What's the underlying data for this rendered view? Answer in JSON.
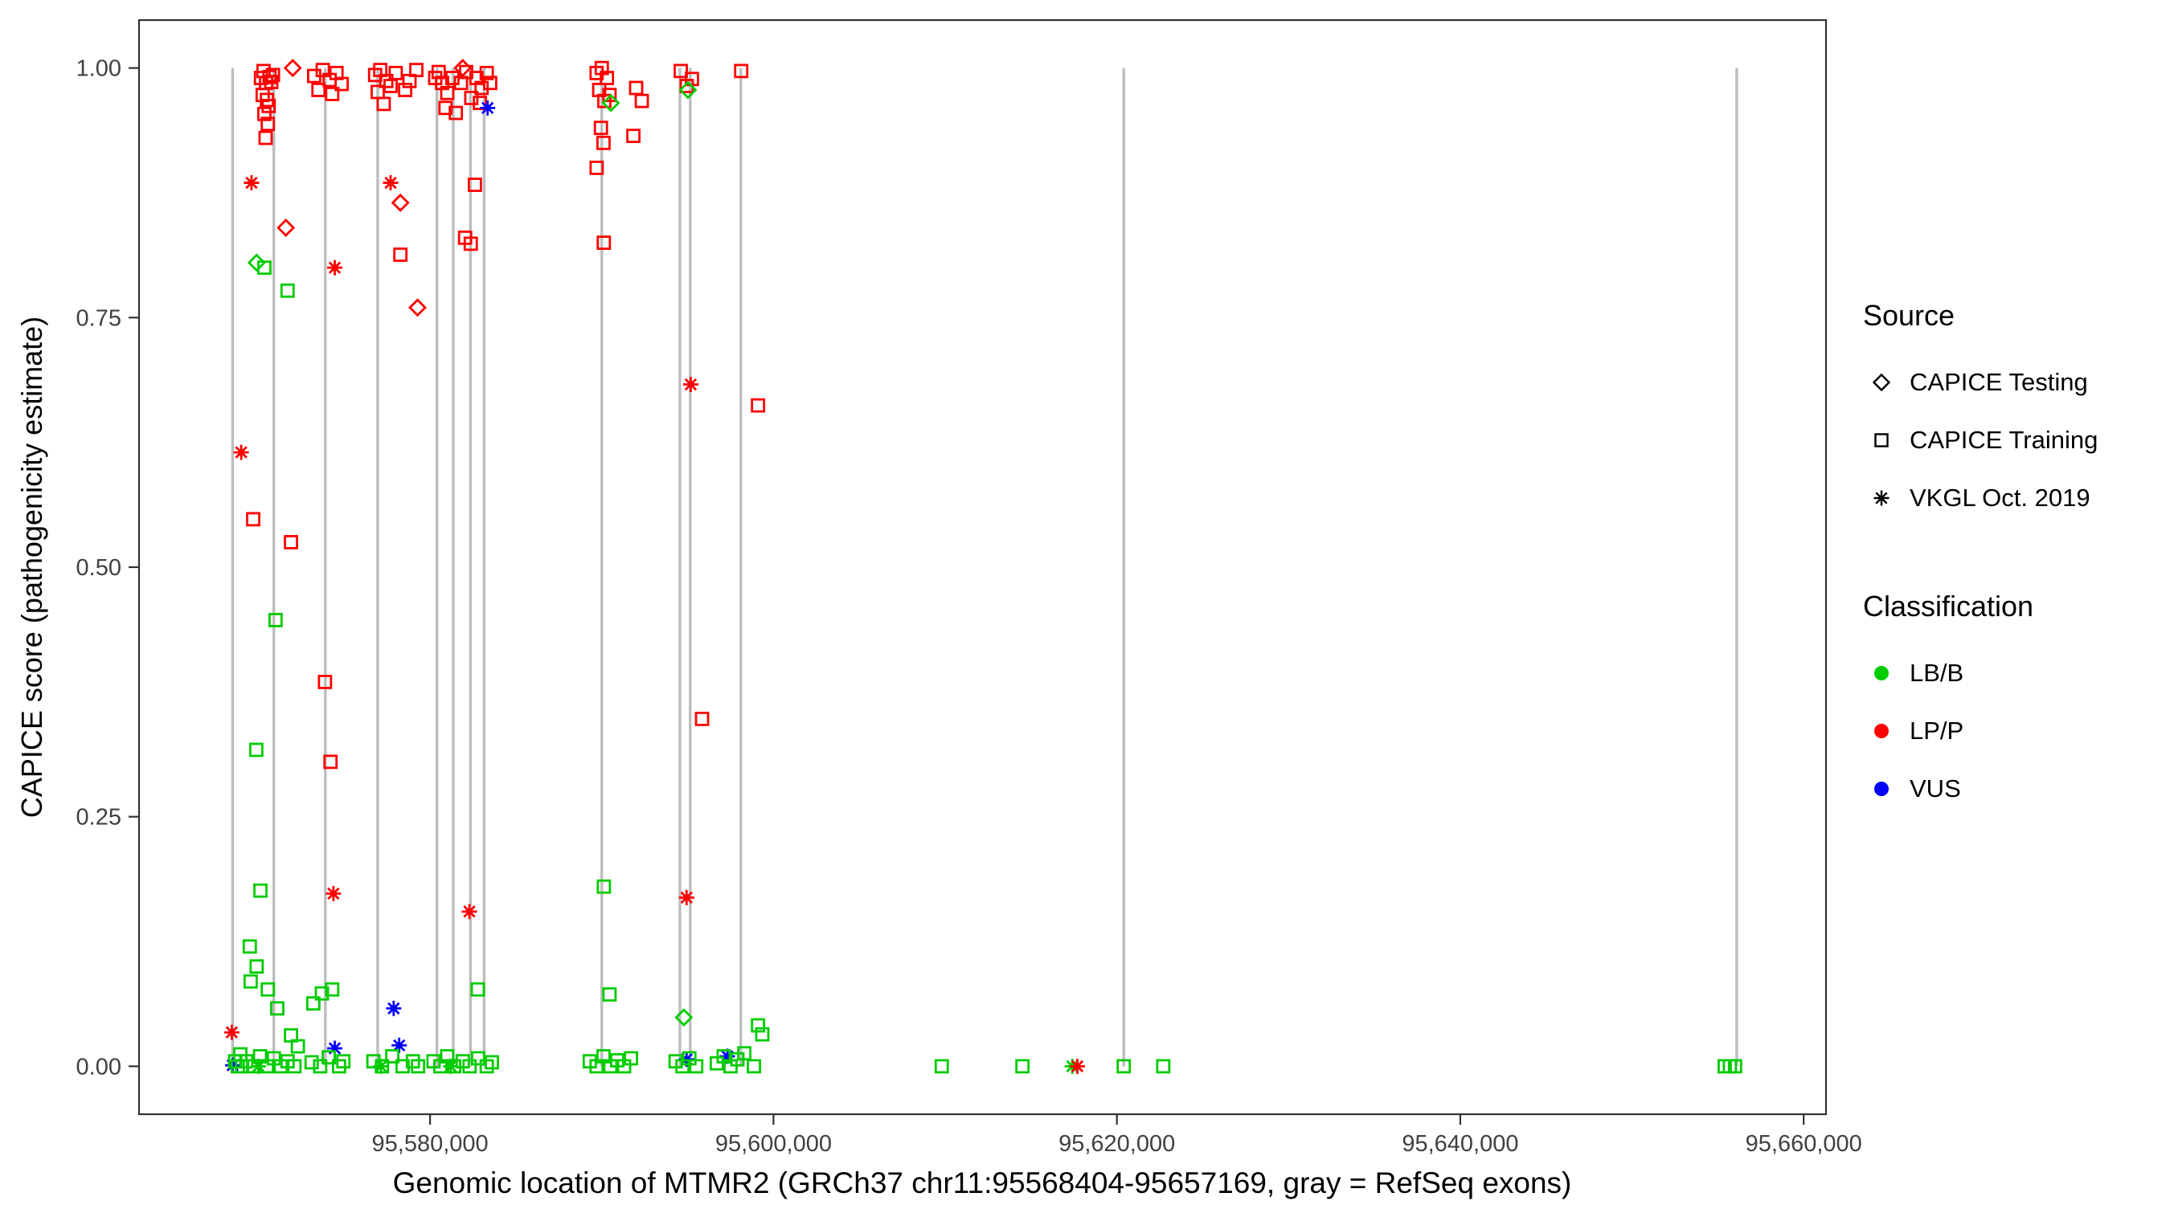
{
  "legend": {
    "source_title": "Source",
    "source_items": [
      {
        "label": "CAPICE Testing",
        "shape": "diamond"
      },
      {
        "label": "CAPICE Training",
        "shape": "square"
      },
      {
        "label": "VKGL Oct. 2019",
        "shape": "asterisk"
      }
    ],
    "classification_title": "Classification",
    "classification_items": [
      {
        "label": "LB/B",
        "color": "#00CC00"
      },
      {
        "label": "LP/P",
        "color": "#FF0000"
      },
      {
        "label": "VUS",
        "color": "#0000FF"
      }
    ]
  },
  "chart_data": {
    "type": "scatter",
    "title": "",
    "xlabel": "Genomic location of MTMR2 (GRCh37 chr11:95568404-95657169, gray = RefSeq exons)",
    "ylabel": "CAPICE score (pathogenicity estimate)",
    "xlim": [
      95563050,
      95661300
    ],
    "ylim": [
      -0.048,
      1.048
    ],
    "grid": false,
    "legend_position": "right",
    "x_ticks": [
      {
        "value": 95580000,
        "label": "95,580,000"
      },
      {
        "value": 95600000,
        "label": "95,600,000"
      },
      {
        "value": 95620000,
        "label": "95,620,000"
      },
      {
        "value": 95640000,
        "label": "95,640,000"
      },
      {
        "value": 95660000,
        "label": "95,660,000"
      }
    ],
    "y_ticks": [
      {
        "value": 0.0,
        "label": "0.00"
      },
      {
        "value": 0.25,
        "label": "0.25"
      },
      {
        "value": 0.5,
        "label": "0.50"
      },
      {
        "value": 0.75,
        "label": "0.75"
      },
      {
        "value": 1.0,
        "label": "1.00"
      }
    ],
    "exon_line_color": "#BDBDBD",
    "exon_lines_x": [
      95568500,
      95570900,
      95573900,
      95576950,
      95580400,
      95581350,
      95582350,
      95583150,
      95590000,
      95594550,
      95595150,
      95598100,
      95620400,
      95656100
    ],
    "source_codes": {
      "T": "CAPICE Testing",
      "R": "CAPICE Training",
      "V": "VKGL Oct. 2019"
    },
    "class_codes": {
      "B": "LB/B",
      "P": "LP/P",
      "U": "VUS"
    },
    "shape_by_source": {
      "CAPICE Testing": "diamond",
      "CAPICE Training": "square",
      "VKGL Oct. 2019": "asterisk"
    },
    "color_by_class": {
      "LB/B": "#00CC00",
      "LP/P": "#FF0000",
      "VUS": "#0000FF"
    },
    "points_format": [
      "x",
      "y",
      "source_code",
      "class_code"
    ],
    "points": [
      [
        95568450,
        0.034,
        "V",
        "P"
      ],
      [
        95568500,
        0.001,
        "V",
        "U"
      ],
      [
        95568650,
        0.005,
        "R",
        "B"
      ],
      [
        95568800,
        0.0,
        "R",
        "B"
      ],
      [
        95568950,
        0.012,
        "R",
        "B"
      ],
      [
        95569050,
        0.0,
        "R",
        "B"
      ],
      [
        95569000,
        0.615,
        "V",
        "P"
      ],
      [
        95569600,
        0.885,
        "V",
        "P"
      ],
      [
        95570150,
        0.99,
        "R",
        "P"
      ],
      [
        95570300,
        0.997,
        "R",
        "P"
      ],
      [
        95570450,
        0.985,
        "R",
        "P"
      ],
      [
        95570250,
        0.973,
        "R",
        "P"
      ],
      [
        95570500,
        0.968,
        "R",
        "P"
      ],
      [
        95570650,
        0.991,
        "R",
        "P"
      ],
      [
        95570350,
        0.954,
        "R",
        "P"
      ],
      [
        95570550,
        0.944,
        "R",
        "P"
      ],
      [
        95570420,
        0.93,
        "R",
        "P"
      ],
      [
        95570750,
        0.986,
        "R",
        "P"
      ],
      [
        95570850,
        0.993,
        "R",
        "P"
      ],
      [
        95570600,
        0.962,
        "R",
        "P"
      ],
      [
        95572000,
        1.0,
        "T",
        "P"
      ],
      [
        95571600,
        0.84,
        "T",
        "P"
      ],
      [
        95569900,
        0.805,
        "T",
        "B"
      ],
      [
        95570350,
        0.8,
        "R",
        "B"
      ],
      [
        95571700,
        0.777,
        "R",
        "B"
      ],
      [
        95569700,
        0.548,
        "R",
        "P"
      ],
      [
        95571900,
        0.525,
        "R",
        "P"
      ],
      [
        95571000,
        0.447,
        "R",
        "B"
      ],
      [
        95569880,
        0.317,
        "R",
        "B"
      ],
      [
        95570120,
        0.176,
        "R",
        "B"
      ],
      [
        95569500,
        0.12,
        "R",
        "B"
      ],
      [
        95569550,
        0.085,
        "R",
        "B"
      ],
      [
        95569900,
        0.1,
        "R",
        "B"
      ],
      [
        95570550,
        0.077,
        "R",
        "B"
      ],
      [
        95571100,
        0.058,
        "R",
        "B"
      ],
      [
        95571900,
        0.031,
        "R",
        "B"
      ],
      [
        95572300,
        0.02,
        "R",
        "B"
      ],
      [
        95569300,
        0.005,
        "R",
        "B"
      ],
      [
        95569700,
        0.0,
        "R",
        "B"
      ],
      [
        95570100,
        0.01,
        "R",
        "B"
      ],
      [
        95570500,
        0.0,
        "R",
        "B"
      ],
      [
        95570900,
        0.008,
        "R",
        "B"
      ],
      [
        95571300,
        0.0,
        "R",
        "B"
      ],
      [
        95571700,
        0.005,
        "R",
        "B"
      ],
      [
        95572100,
        0.0,
        "R",
        "B"
      ],
      [
        95570000,
        0.0,
        "V",
        "B"
      ],
      [
        95573250,
        0.992,
        "R",
        "P"
      ],
      [
        95573750,
        0.998,
        "R",
        "P"
      ],
      [
        95574150,
        0.988,
        "R",
        "P"
      ],
      [
        95574550,
        0.995,
        "R",
        "P"
      ],
      [
        95574850,
        0.984,
        "R",
        "P"
      ],
      [
        95573500,
        0.978,
        "R",
        "P"
      ],
      [
        95574300,
        0.974,
        "R",
        "P"
      ],
      [
        95574450,
        0.8,
        "V",
        "P"
      ],
      [
        95573880,
        0.385,
        "R",
        "P"
      ],
      [
        95574200,
        0.305,
        "R",
        "P"
      ],
      [
        95574370,
        0.173,
        "V",
        "P"
      ],
      [
        95573200,
        0.063,
        "R",
        "B"
      ],
      [
        95573700,
        0.073,
        "R",
        "B"
      ],
      [
        95574300,
        0.077,
        "R",
        "B"
      ],
      [
        95574450,
        0.018,
        "V",
        "U"
      ],
      [
        95573100,
        0.004,
        "R",
        "B"
      ],
      [
        95573600,
        0.0,
        "R",
        "B"
      ],
      [
        95574100,
        0.009,
        "R",
        "B"
      ],
      [
        95574700,
        0.0,
        "R",
        "B"
      ],
      [
        95574950,
        0.005,
        "R",
        "B"
      ],
      [
        95576800,
        0.993,
        "R",
        "P"
      ],
      [
        95577100,
        0.998,
        "R",
        "P"
      ],
      [
        95577450,
        0.987,
        "R",
        "P"
      ],
      [
        95576950,
        0.976,
        "R",
        "P"
      ],
      [
        95577700,
        0.982,
        "R",
        "P"
      ],
      [
        95577300,
        0.964,
        "R",
        "P"
      ],
      [
        95578000,
        0.995,
        "R",
        "P"
      ],
      [
        95578800,
        0.987,
        "R",
        "P"
      ],
      [
        95579200,
        0.998,
        "R",
        "P"
      ],
      [
        95578550,
        0.978,
        "R",
        "P"
      ],
      [
        95577700,
        0.885,
        "V",
        "P"
      ],
      [
        95578270,
        0.865,
        "T",
        "P"
      ],
      [
        95578270,
        0.813,
        "R",
        "P"
      ],
      [
        95579270,
        0.76,
        "T",
        "P"
      ],
      [
        95577880,
        0.058,
        "V",
        "U"
      ],
      [
        95578200,
        0.021,
        "V",
        "U"
      ],
      [
        95577140,
        0.0,
        "V",
        "B"
      ],
      [
        95576700,
        0.005,
        "R",
        "B"
      ],
      [
        95577200,
        0.0,
        "R",
        "B"
      ],
      [
        95577800,
        0.01,
        "R",
        "B"
      ],
      [
        95578400,
        0.0,
        "R",
        "B"
      ],
      [
        95579000,
        0.005,
        "R",
        "B"
      ],
      [
        95579300,
        0.0,
        "R",
        "B"
      ],
      [
        95580300,
        0.99,
        "R",
        "P"
      ],
      [
        95580500,
        0.996,
        "R",
        "P"
      ],
      [
        95580700,
        0.985,
        "R",
        "P"
      ],
      [
        95581000,
        0.975,
        "R",
        "P"
      ],
      [
        95581300,
        0.99,
        "R",
        "P"
      ],
      [
        95581500,
        0.955,
        "R",
        "P"
      ],
      [
        95581800,
        0.985,
        "R",
        "P"
      ],
      [
        95582100,
        0.996,
        "R",
        "P"
      ],
      [
        95582400,
        0.97,
        "R",
        "P"
      ],
      [
        95582700,
        0.99,
        "R",
        "P"
      ],
      [
        95583000,
        0.98,
        "R",
        "P"
      ],
      [
        95583300,
        0.995,
        "R",
        "P"
      ],
      [
        95583500,
        0.985,
        "R",
        "P"
      ],
      [
        95580900,
        0.96,
        "R",
        "P"
      ],
      [
        95582900,
        0.965,
        "R",
        "P"
      ],
      [
        95581900,
        1.0,
        "T",
        "P"
      ],
      [
        95583350,
        0.96,
        "V",
        "U"
      ],
      [
        95582610,
        0.883,
        "R",
        "P"
      ],
      [
        95582040,
        0.83,
        "R",
        "P"
      ],
      [
        95582370,
        0.824,
        "R",
        "P"
      ],
      [
        95582290,
        0.155,
        "V",
        "P"
      ],
      [
        95582780,
        0.077,
        "R",
        "B"
      ],
      [
        95580200,
        0.005,
        "R",
        "B"
      ],
      [
        95580600,
        0.0,
        "R",
        "B"
      ],
      [
        95581000,
        0.01,
        "R",
        "B"
      ],
      [
        95581400,
        0.0,
        "R",
        "B"
      ],
      [
        95581900,
        0.005,
        "R",
        "B"
      ],
      [
        95582300,
        0.0,
        "R",
        "B"
      ],
      [
        95582800,
        0.008,
        "R",
        "B"
      ],
      [
        95583300,
        0.0,
        "R",
        "B"
      ],
      [
        95583600,
        0.004,
        "R",
        "B"
      ],
      [
        95581200,
        0.0,
        "V",
        "B"
      ],
      [
        95589700,
        0.995,
        "R",
        "P"
      ],
      [
        95590000,
        1.0,
        "R",
        "P"
      ],
      [
        95590300,
        0.99,
        "R",
        "P"
      ],
      [
        95589850,
        0.978,
        "R",
        "P"
      ],
      [
        95590150,
        0.967,
        "R",
        "P"
      ],
      [
        95590450,
        0.973,
        "R",
        "P"
      ],
      [
        95589950,
        0.94,
        "R",
        "P"
      ],
      [
        95589700,
        0.9,
        "R",
        "P"
      ],
      [
        95590100,
        0.925,
        "R",
        "P"
      ],
      [
        95590530,
        0.965,
        "T",
        "B"
      ],
      [
        95590120,
        0.825,
        "R",
        "P"
      ],
      [
        95592000,
        0.98,
        "R",
        "P"
      ],
      [
        95592330,
        0.967,
        "R",
        "P"
      ],
      [
        95591840,
        0.932,
        "R",
        "P"
      ],
      [
        95590120,
        0.18,
        "R",
        "B"
      ],
      [
        95590450,
        0.072,
        "R",
        "B"
      ],
      [
        95589300,
        0.005,
        "R",
        "B"
      ],
      [
        95589700,
        0.0,
        "R",
        "B"
      ],
      [
        95590100,
        0.01,
        "R",
        "B"
      ],
      [
        95590500,
        0.0,
        "R",
        "B"
      ],
      [
        95590900,
        0.006,
        "R",
        "B"
      ],
      [
        95591300,
        0.0,
        "R",
        "B"
      ],
      [
        95591700,
        0.008,
        "R",
        "B"
      ],
      [
        95594600,
        0.997,
        "R",
        "P"
      ],
      [
        95594950,
        0.982,
        "R",
        "P"
      ],
      [
        95595250,
        0.989,
        "R",
        "P"
      ],
      [
        95595020,
        0.978,
        "T",
        "B"
      ],
      [
        95595180,
        0.683,
        "V",
        "P"
      ],
      [
        95595840,
        0.348,
        "R",
        "P"
      ],
      [
        95594940,
        0.169,
        "V",
        "P"
      ],
      [
        95594780,
        0.049,
        "T",
        "B"
      ],
      [
        95594940,
        0.007,
        "V",
        "U"
      ],
      [
        95594300,
        0.005,
        "R",
        "B"
      ],
      [
        95594700,
        0.0,
        "R",
        "B"
      ],
      [
        95595100,
        0.008,
        "R",
        "B"
      ],
      [
        95595500,
        0.0,
        "R",
        "B"
      ],
      [
        95598120,
        0.997,
        "R",
        "P"
      ],
      [
        95599100,
        0.662,
        "R",
        "P"
      ],
      [
        95597310,
        0.01,
        "V",
        "U"
      ],
      [
        95596700,
        0.003,
        "R",
        "B"
      ],
      [
        95597100,
        0.01,
        "R",
        "B"
      ],
      [
        95597500,
        0.0,
        "R",
        "B"
      ],
      [
        95597900,
        0.007,
        "R",
        "B"
      ],
      [
        95598300,
        0.013,
        "R",
        "B"
      ],
      [
        95599100,
        0.041,
        "R",
        "B"
      ],
      [
        95599350,
        0.032,
        "R",
        "B"
      ],
      [
        95598860,
        0.0,
        "R",
        "B"
      ],
      [
        95609800,
        0.0,
        "R",
        "B"
      ],
      [
        95614500,
        0.0,
        "R",
        "B"
      ],
      [
        95617400,
        0.0,
        "V",
        "B"
      ],
      [
        95617700,
        0.0,
        "V",
        "P"
      ],
      [
        95620400,
        0.0,
        "R",
        "B"
      ],
      [
        95622700,
        0.0,
        "R",
        "B"
      ],
      [
        95655400,
        0.0,
        "R",
        "B"
      ],
      [
        95655700,
        0.0,
        "R",
        "B"
      ],
      [
        95656000,
        0.0,
        "R",
        "B"
      ]
    ]
  }
}
